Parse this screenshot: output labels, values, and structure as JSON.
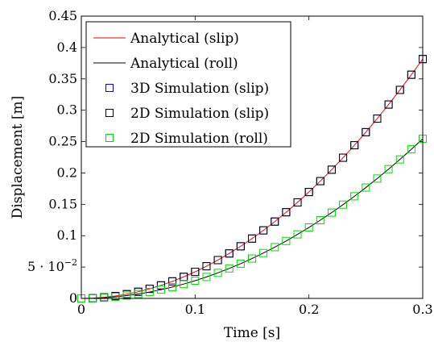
{
  "chart_data": {
    "type": "line",
    "title": "",
    "xlabel": "Time [s]",
    "ylabel": "Displacement [m]",
    "xlim": [
      0,
      0.3
    ],
    "ylim": [
      0,
      0.45
    ],
    "grid": false,
    "legend_position": "top-left",
    "xticks": [
      {
        "value": 0,
        "label": "0"
      },
      {
        "value": 0.1,
        "label": "0.1"
      },
      {
        "value": 0.2,
        "label": "0.2"
      },
      {
        "value": 0.3,
        "label": "0.3"
      }
    ],
    "yticks": [
      {
        "value": 0,
        "label": "0"
      },
      {
        "value": 0.05,
        "label": "5 · 10",
        "sup": "−2"
      },
      {
        "value": 0.1,
        "label": "0.1"
      },
      {
        "value": 0.15,
        "label": "0.15"
      },
      {
        "value": 0.2,
        "label": "0.2"
      },
      {
        "value": 0.25,
        "label": "0.25"
      },
      {
        "value": 0.3,
        "label": "0.3"
      },
      {
        "value": 0.35,
        "label": "0.35"
      },
      {
        "value": 0.4,
        "label": "0.4"
      },
      {
        "value": 0.45,
        "label": "0.45"
      }
    ],
    "series": [
      {
        "name": "Analytical (slip)",
        "kind": "line",
        "color": "#ff0000",
        "x": [
          0,
          0.01,
          0.02,
          0.03,
          0.04,
          0.05,
          0.06,
          0.07,
          0.08,
          0.09,
          0.1,
          0.11,
          0.12,
          0.13,
          0.14,
          0.15,
          0.16,
          0.17,
          0.18,
          0.19,
          0.2,
          0.21,
          0.22,
          0.23,
          0.24,
          0.25,
          0.26,
          0.27,
          0.28,
          0.29,
          0.3
        ],
        "y": [
          0,
          0.0004,
          0.0017,
          0.0038,
          0.0068,
          0.0106,
          0.0153,
          0.0208,
          0.0272,
          0.0344,
          0.0424,
          0.0513,
          0.0611,
          0.0717,
          0.0831,
          0.0954,
          0.1085,
          0.1225,
          0.1374,
          0.1531,
          0.1696,
          0.187,
          0.2052,
          0.2243,
          0.2442,
          0.265,
          0.2866,
          0.3091,
          0.3324,
          0.3566,
          0.3816
        ]
      },
      {
        "name": "Analytical (roll)",
        "kind": "line",
        "color": "#000000",
        "x": [
          0,
          0.01,
          0.02,
          0.03,
          0.04,
          0.05,
          0.06,
          0.07,
          0.08,
          0.09,
          0.1,
          0.11,
          0.12,
          0.13,
          0.14,
          0.15,
          0.16,
          0.17,
          0.18,
          0.19,
          0.2,
          0.21,
          0.22,
          0.23,
          0.24,
          0.25,
          0.26,
          0.27,
          0.28,
          0.29,
          0.3
        ],
        "y": [
          0,
          0.0003,
          0.0011,
          0.0025,
          0.0045,
          0.0071,
          0.0102,
          0.0139,
          0.0181,
          0.0229,
          0.0283,
          0.0342,
          0.0407,
          0.0478,
          0.0554,
          0.0636,
          0.0724,
          0.0817,
          0.0916,
          0.1021,
          0.1131,
          0.1247,
          0.1368,
          0.1495,
          0.1628,
          0.1767,
          0.1911,
          0.2061,
          0.2216,
          0.2377,
          0.2544
        ]
      },
      {
        "name": "3D Simulation (slip)",
        "kind": "marker",
        "color": "#0000ff",
        "x": [
          0,
          0.01,
          0.02,
          0.03,
          0.04,
          0.05,
          0.06,
          0.07,
          0.08,
          0.09,
          0.1,
          0.11,
          0.12,
          0.13,
          0.14,
          0.15,
          0.16,
          0.17,
          0.18,
          0.19,
          0.2,
          0.21,
          0.22,
          0.23,
          0.24,
          0.25,
          0.26,
          0.27,
          0.28,
          0.29,
          0.3
        ],
        "y": [
          0,
          0.0004,
          0.0017,
          0.0038,
          0.0068,
          0.0106,
          0.0153,
          0.0208,
          0.0272,
          0.0344,
          0.0424,
          0.0513,
          0.0611,
          0.0717,
          0.0831,
          0.0954,
          0.1085,
          0.1225,
          0.1374,
          0.1531,
          0.1696,
          0.187,
          0.2052,
          0.2243,
          0.2442,
          0.265,
          0.2866,
          0.3091,
          0.3324,
          0.3566,
          0.3816
        ]
      },
      {
        "name": "2D Simulation (slip)",
        "kind": "marker",
        "color": "#000000",
        "x": [
          0,
          0.01,
          0.02,
          0.03,
          0.04,
          0.05,
          0.06,
          0.07,
          0.08,
          0.09,
          0.1,
          0.11,
          0.12,
          0.13,
          0.14,
          0.15,
          0.16,
          0.17,
          0.18,
          0.19,
          0.2,
          0.21,
          0.22,
          0.23,
          0.24,
          0.25,
          0.26,
          0.27,
          0.28,
          0.29,
          0.3
        ],
        "y": [
          0,
          0.0004,
          0.0017,
          0.0038,
          0.0068,
          0.0106,
          0.0153,
          0.0208,
          0.0272,
          0.0344,
          0.0424,
          0.0513,
          0.0611,
          0.0717,
          0.0831,
          0.0954,
          0.1085,
          0.1225,
          0.1374,
          0.1531,
          0.1696,
          0.187,
          0.2052,
          0.2243,
          0.2442,
          0.265,
          0.2866,
          0.3091,
          0.3324,
          0.3566,
          0.3816
        ]
      },
      {
        "name": "2D Simulation (roll)",
        "kind": "marker",
        "color": "#00dd00",
        "x": [
          0,
          0.01,
          0.02,
          0.03,
          0.04,
          0.05,
          0.06,
          0.07,
          0.08,
          0.09,
          0.1,
          0.11,
          0.12,
          0.13,
          0.14,
          0.15,
          0.16,
          0.17,
          0.18,
          0.19,
          0.2,
          0.21,
          0.22,
          0.23,
          0.24,
          0.25,
          0.26,
          0.27,
          0.28,
          0.29,
          0.3
        ],
        "y": [
          0,
          0.0003,
          0.0011,
          0.0025,
          0.0045,
          0.0071,
          0.0102,
          0.0139,
          0.0181,
          0.0229,
          0.0283,
          0.0342,
          0.0407,
          0.0478,
          0.0554,
          0.0636,
          0.0724,
          0.0817,
          0.0916,
          0.1021,
          0.1131,
          0.1247,
          0.1368,
          0.1495,
          0.1628,
          0.1767,
          0.1911,
          0.2061,
          0.2216,
          0.2377,
          0.2544
        ]
      }
    ]
  }
}
